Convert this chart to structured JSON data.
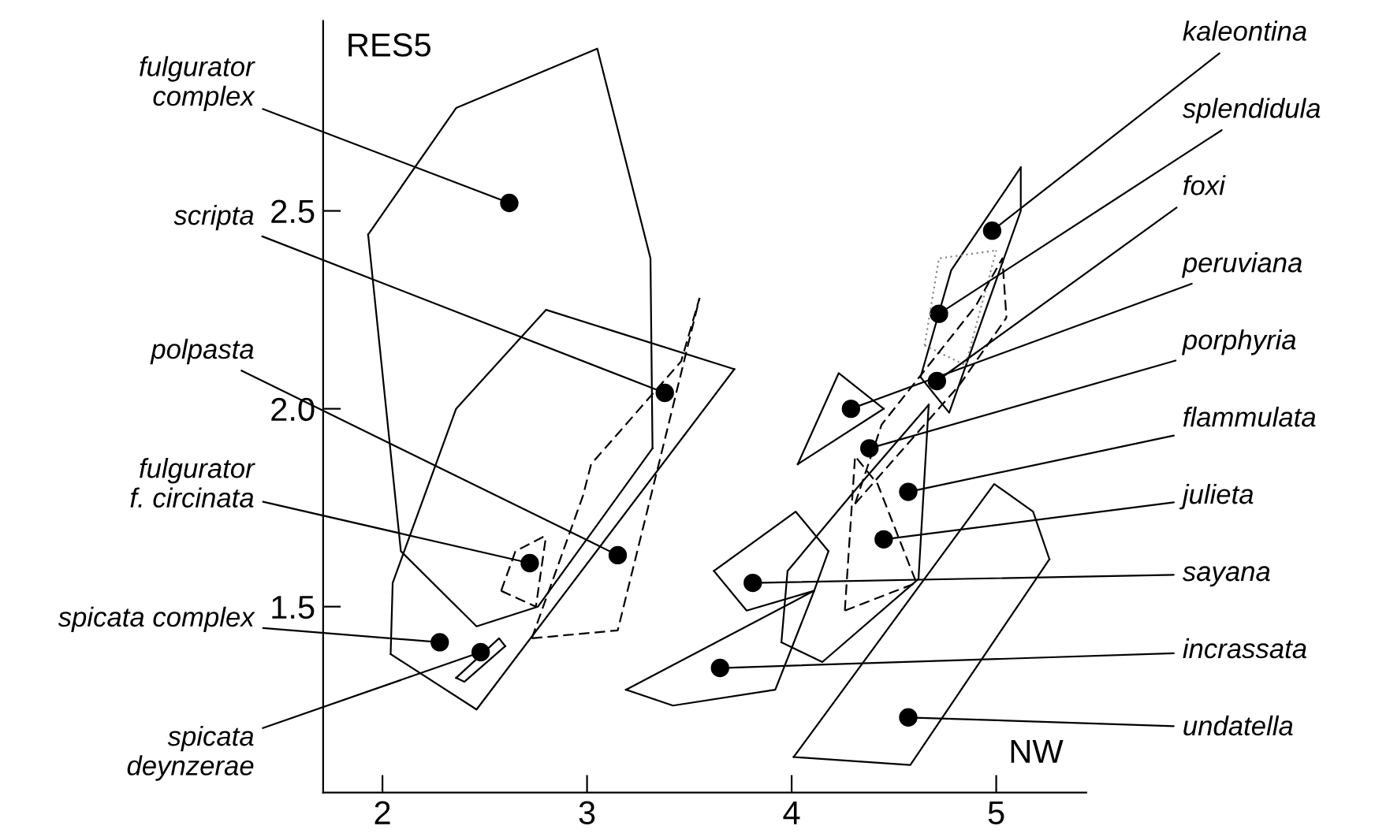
{
  "chart_data": {
    "type": "scatter",
    "xlabel": "NW",
    "ylabel": "RES5",
    "xlim": [
      1.71,
      5.44
    ],
    "ylim": [
      1.03,
      2.98
    ],
    "xticks": [
      2,
      3,
      4,
      5
    ],
    "yticks": [
      1.5,
      {
        "value": 2.0,
        "label": "2.0"
      },
      2.5
    ],
    "grid": false,
    "legend": false,
    "series": [
      {
        "type": "scatter",
        "color": "#000000",
        "marker": "circle",
        "x": [
          2.62,
          3.38,
          3.15,
          2.72,
          2.28,
          2.48,
          4.98,
          4.72,
          4.71,
          4.29,
          4.38,
          4.57,
          4.45,
          3.81,
          3.65,
          4.57
        ],
        "values": [
          2.52,
          2.04,
          1.63,
          1.61,
          1.41,
          1.385,
          2.45,
          2.24,
          2.07,
          2.0,
          1.9,
          1.79,
          1.67,
          1.56,
          1.345,
          1.22
        ]
      },
      {
        "type": "line",
        "color": "#000000",
        "line_style": "solid",
        "x": [
          1.93,
          2.36,
          3.05,
          3.31,
          3.32
        ],
        "values": [
          2.44,
          2.76,
          2.91,
          2.38,
          1.9
        ]
      },
      {
        "type": "line",
        "color": "#000000",
        "line_style": "solid",
        "x": [
          1.93,
          2.09,
          2.46,
          2.76,
          3.32
        ],
        "values": [
          2.44,
          1.64,
          1.45,
          1.5,
          1.9
        ]
      },
      {
        "type": "line",
        "color": "#000000",
        "line_style": "solid",
        "x": [
          2.04,
          2.05,
          2.36,
          2.8,
          3.72
        ],
        "values": [
          1.38,
          1.56,
          2.0,
          2.25,
          2.1
        ]
      },
      {
        "type": "line",
        "color": "#000000",
        "line_style": "solid",
        "x": [
          2.04,
          2.46,
          3.72
        ],
        "values": [
          1.38,
          1.24,
          2.1
        ]
      },
      {
        "type": "line",
        "color": "#000000",
        "line_style": "dashed",
        "x": [
          2.73,
          2.98,
          3.02,
          3.46,
          3.55
        ],
        "values": [
          1.42,
          1.78,
          1.86,
          2.12,
          2.28
        ]
      },
      {
        "type": "line",
        "color": "#000000",
        "line_style": "dashed",
        "x": [
          2.73,
          3.15,
          3.36,
          3.55
        ],
        "values": [
          1.42,
          1.44,
          1.88,
          2.28
        ]
      },
      {
        "type": "line",
        "color": "#000000",
        "line_style": "dashed",
        "x": [
          2.58,
          2.65,
          2.8
        ],
        "values": [
          1.54,
          1.64,
          1.68
        ]
      },
      {
        "type": "line",
        "color": "#000000",
        "line_style": "dashed",
        "x": [
          2.58,
          2.75,
          2.8
        ],
        "values": [
          1.54,
          1.5,
          1.68
        ]
      },
      {
        "type": "line",
        "color": "#000000",
        "line_style": "solid",
        "x": [
          2.36,
          2.57,
          2.6
        ],
        "values": [
          1.32,
          1.42,
          1.4
        ]
      },
      {
        "type": "line",
        "color": "#000000",
        "line_style": "solid",
        "x": [
          2.36,
          2.4,
          2.6
        ],
        "values": [
          1.32,
          1.31,
          1.4
        ]
      },
      {
        "type": "line",
        "color": "#000000",
        "line_style": "solid",
        "x": [
          4.63,
          4.78,
          5.12
        ],
        "values": [
          2.08,
          2.35,
          2.61
        ]
      },
      {
        "type": "line",
        "color": "#000000",
        "line_style": "solid",
        "x": [
          4.63,
          4.77,
          5.12,
          5.12
        ],
        "values": [
          2.08,
          1.99,
          2.5,
          2.61
        ]
      },
      {
        "type": "line",
        "color": "#888888",
        "line_style": "dotted",
        "x": [
          4.65,
          4.72,
          5.0
        ],
        "values": [
          2.16,
          2.38,
          2.4
        ]
      },
      {
        "type": "line",
        "color": "#888888",
        "line_style": "dotted",
        "x": [
          4.65,
          4.85,
          5.0
        ],
        "values": [
          2.16,
          2.11,
          2.4
        ]
      },
      {
        "type": "line",
        "color": "#000000",
        "line_style": "dashed",
        "x": [
          4.31,
          4.44,
          4.9,
          5.03,
          5.05
        ],
        "values": [
          1.76,
          1.96,
          2.26,
          2.38,
          2.23
        ]
      },
      {
        "type": "line",
        "color": "#000000",
        "line_style": "dashed",
        "x": [
          4.31,
          4.82,
          5.05
        ],
        "values": [
          1.76,
          2.06,
          2.23
        ]
      },
      {
        "type": "line",
        "color": "#000000",
        "line_style": "solid",
        "x": [
          4.03,
          4.23,
          4.45
        ],
        "values": [
          1.86,
          2.09,
          2.0
        ]
      },
      {
        "type": "line",
        "color": "#000000",
        "line_style": "solid",
        "x": [
          4.03,
          4.45
        ],
        "values": [
          1.86,
          2.0
        ]
      },
      {
        "type": "line",
        "color": "#000000",
        "line_style": "dashed",
        "x": [
          4.26,
          4.31,
          4.42,
          4.61
        ],
        "values": [
          1.49,
          1.88,
          1.81,
          1.56
        ]
      },
      {
        "type": "line",
        "color": "#000000",
        "line_style": "dashed",
        "x": [
          4.26,
          4.61
        ],
        "values": [
          1.49,
          1.56
        ]
      },
      {
        "type": "line",
        "color": "#000000",
        "line_style": "solid",
        "x": [
          3.95,
          3.98,
          4.32,
          4.67
        ],
        "values": [
          1.41,
          1.59,
          1.8,
          2.01
        ]
      },
      {
        "type": "line",
        "color": "#000000",
        "line_style": "solid",
        "x": [
          3.95,
          4.15,
          4.62,
          4.67
        ],
        "values": [
          1.41,
          1.36,
          1.57,
          2.01
        ]
      },
      {
        "type": "line",
        "color": "#000000",
        "line_style": "solid",
        "x": [
          3.62,
          4.02,
          4.18
        ],
        "values": [
          1.59,
          1.74,
          1.64
        ]
      },
      {
        "type": "line",
        "color": "#000000",
        "line_style": "solid",
        "x": [
          3.62,
          3.78,
          4.11,
          4.18
        ],
        "values": [
          1.59,
          1.49,
          1.54,
          1.64
        ]
      },
      {
        "type": "line",
        "color": "#000000",
        "line_style": "solid",
        "x": [
          3.19,
          4.11
        ],
        "values": [
          1.29,
          1.54
        ]
      },
      {
        "type": "line",
        "color": "#000000",
        "line_style": "solid",
        "x": [
          3.19,
          3.42,
          3.92,
          4.11
        ],
        "values": [
          1.29,
          1.25,
          1.29,
          1.54
        ]
      },
      {
        "type": "line",
        "color": "#000000",
        "line_style": "solid",
        "x": [
          4.01,
          4.99,
          5.18,
          5.26
        ],
        "values": [
          1.12,
          1.81,
          1.74,
          1.62
        ]
      },
      {
        "type": "line",
        "color": "#000000",
        "line_style": "solid",
        "x": [
          4.01,
          4.58,
          5.26
        ],
        "values": [
          1.12,
          1.1,
          1.62
        ]
      }
    ],
    "annotations": [
      {
        "text": "fulgurator\ncomplex",
        "x": 2.62,
        "y": 2.52
      },
      {
        "text": "scripta",
        "x": 3.38,
        "y": 2.04
      },
      {
        "text": "polpasta",
        "x": 3.15,
        "y": 1.63
      },
      {
        "text": "fulgurator\nf. circinata",
        "x": 2.72,
        "y": 1.61
      },
      {
        "text": "spicata complex",
        "x": 2.28,
        "y": 1.41
      },
      {
        "text": "spicata\ndeynzerae",
        "x": 2.48,
        "y": 1.385
      },
      {
        "text": "kaleontina",
        "x": 4.98,
        "y": 2.45
      },
      {
        "text": "splendidula",
        "x": 4.72,
        "y": 2.24
      },
      {
        "text": "foxi",
        "x": 4.71,
        "y": 2.07
      },
      {
        "text": "peruviana",
        "x": 4.29,
        "y": 2.0
      },
      {
        "text": "porphyria",
        "x": 4.38,
        "y": 1.9
      },
      {
        "text": "flammulata",
        "x": 4.57,
        "y": 1.79
      },
      {
        "text": "julieta",
        "x": 4.45,
        "y": 1.67
      },
      {
        "text": "sayana",
        "x": 3.81,
        "y": 1.56
      },
      {
        "text": "incrassata",
        "x": 3.65,
        "y": 1.345
      },
      {
        "text": "undatella",
        "x": 4.57,
        "y": 1.22
      }
    ]
  }
}
